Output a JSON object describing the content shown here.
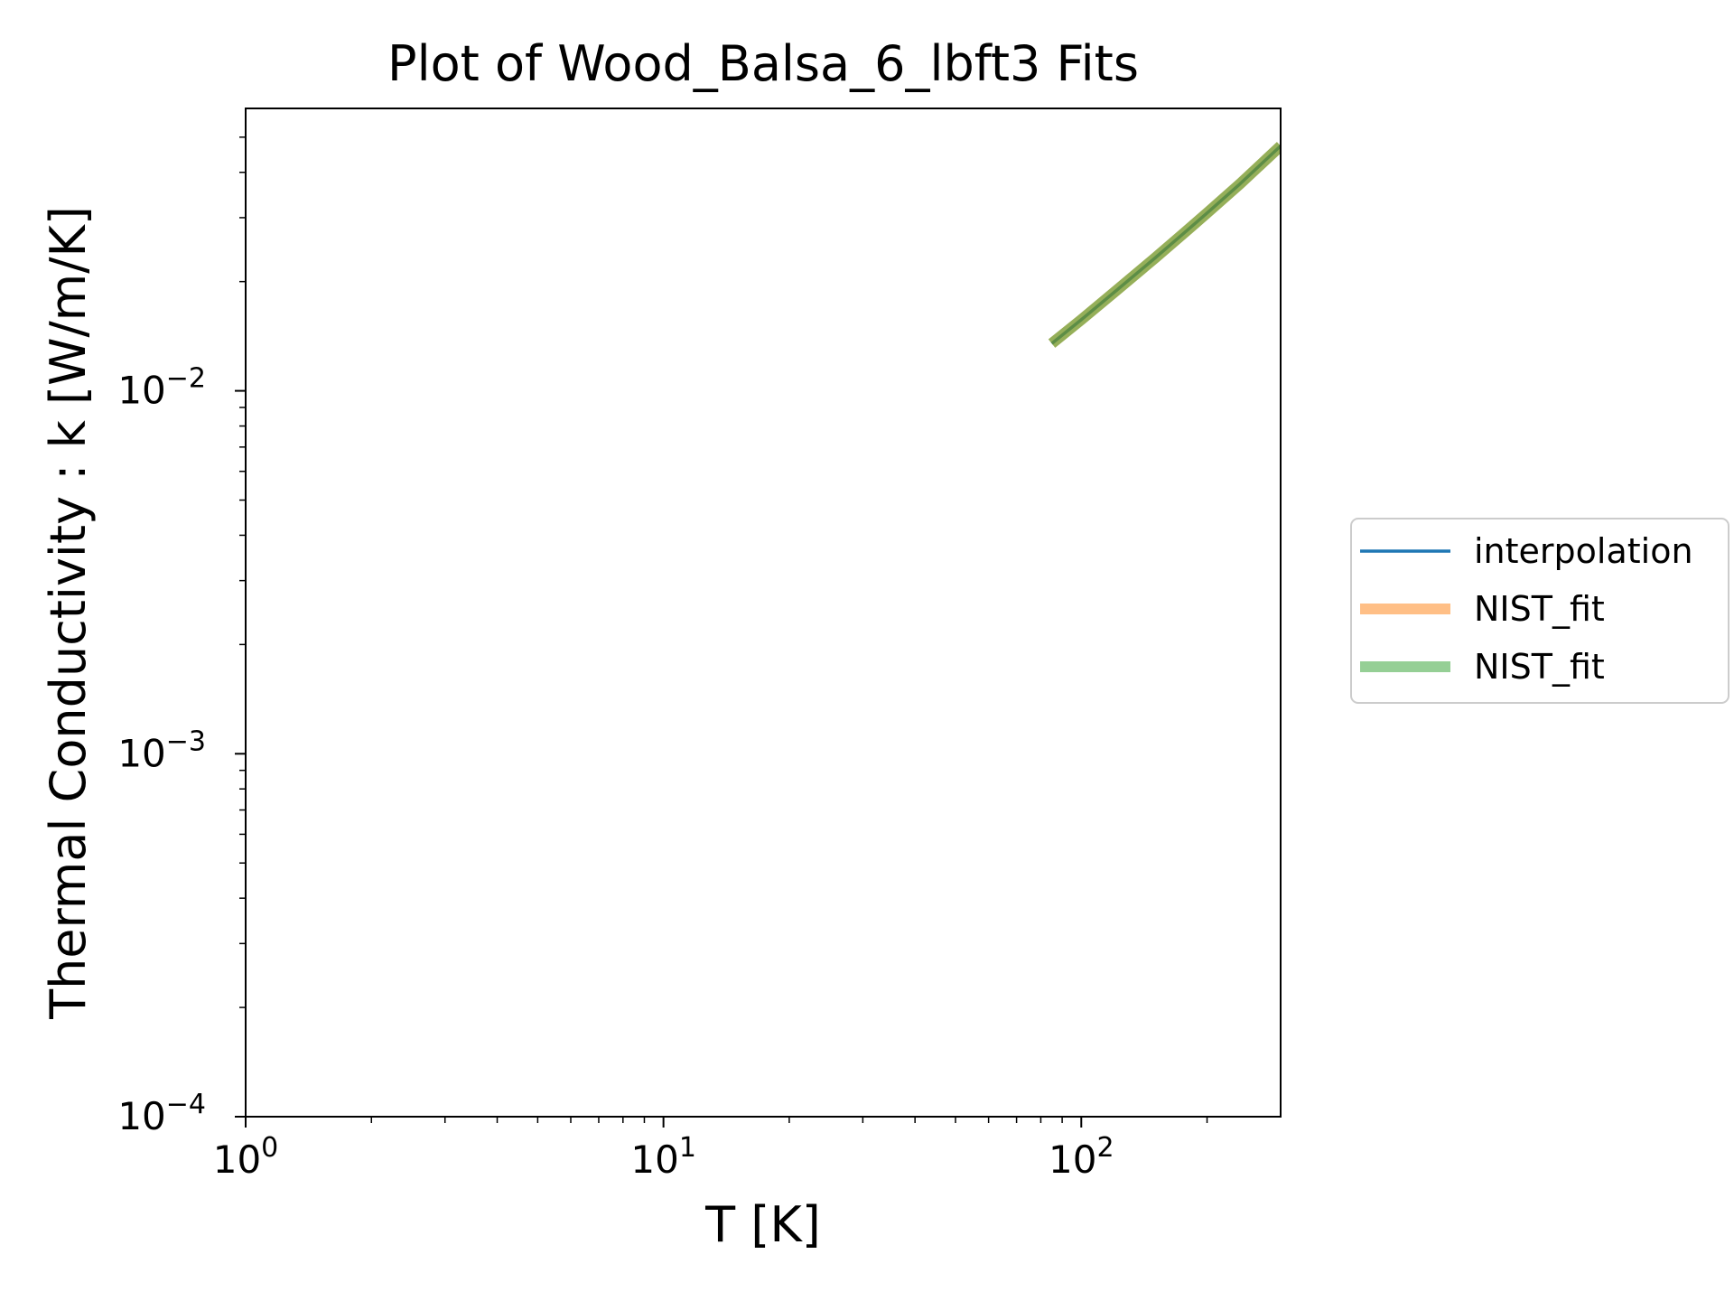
{
  "chart_data": {
    "type": "line",
    "title": "Plot of Wood_Balsa_6_lbft3 Fits",
    "xlabel": "T [K]",
    "ylabel": "Thermal Conductivity : k [W/m/K]",
    "xscale": "log",
    "yscale": "log",
    "xlim": [
      1,
      300
    ],
    "ylim": [
      0.0001,
      0.06
    ],
    "grid": false,
    "legend_position": "right-outside",
    "x_ticks": [
      {
        "value": 1,
        "base": "10",
        "exp": "0"
      },
      {
        "value": 10,
        "base": "10",
        "exp": "1"
      },
      {
        "value": 100,
        "base": "10",
        "exp": "2"
      }
    ],
    "y_ticks": [
      {
        "value": 0.0001,
        "base": "10",
        "exp": "−4"
      },
      {
        "value": 0.001,
        "base": "10",
        "exp": "−3"
      },
      {
        "value": 0.01,
        "base": "10",
        "exp": "−2"
      }
    ],
    "series": [
      {
        "name": "interpolation",
        "color": "#1f77b4",
        "style": "thin",
        "x": [
          85,
          100,
          120,
          150,
          180,
          200,
          240,
          300
        ],
        "y": [
          0.0135,
          0.0157,
          0.0187,
          0.0232,
          0.0278,
          0.0309,
          0.0372,
          0.0473
        ]
      },
      {
        "name": "NIST_fit",
        "color": "#ff7f0e",
        "style": "thick",
        "x": [
          85,
          100,
          120,
          150,
          180,
          200,
          240,
          300
        ],
        "y": [
          0.0135,
          0.0157,
          0.0187,
          0.0232,
          0.0278,
          0.0309,
          0.0372,
          0.0473
        ]
      },
      {
        "name": "NIST_fit",
        "color": "#2ca02c",
        "style": "thick",
        "x": [
          85,
          100,
          120,
          150,
          180,
          200,
          240,
          300
        ],
        "y": [
          0.0135,
          0.0157,
          0.0187,
          0.0232,
          0.0278,
          0.0309,
          0.0372,
          0.0473
        ]
      }
    ]
  }
}
